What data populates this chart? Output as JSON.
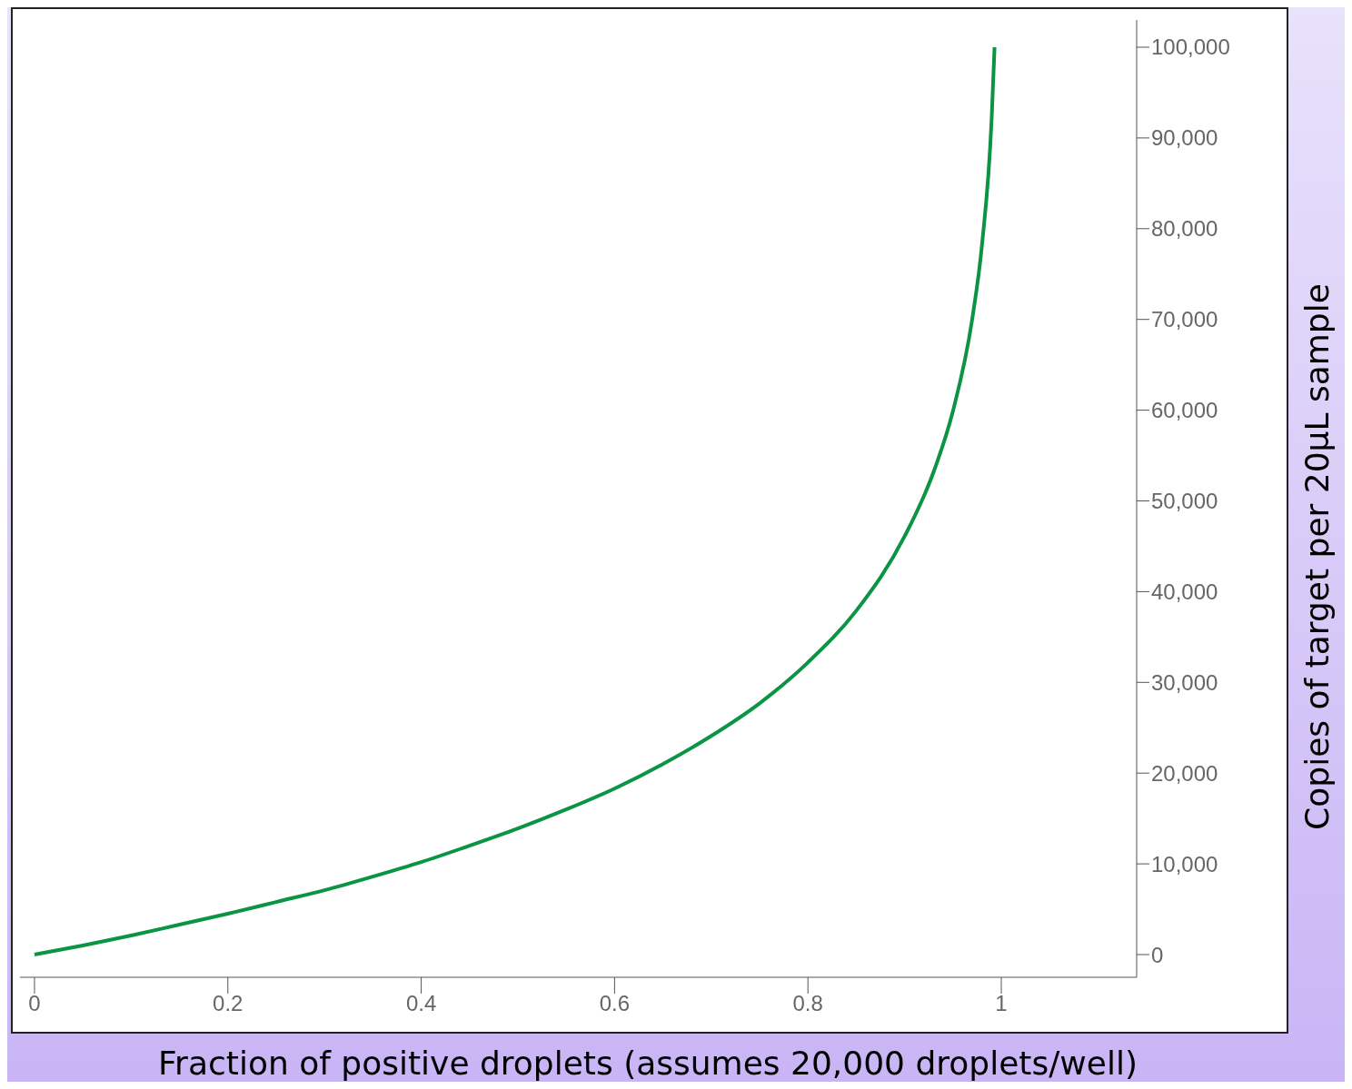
{
  "chart_data": {
    "type": "line",
    "xlabel": "Fraction of positive droplets (assumes 20,000 droplets/well)",
    "ylabel": "Copies of target per 20μL sample",
    "x": [
      0,
      0.05,
      0.1,
      0.15,
      0.2,
      0.25,
      0.3,
      0.35,
      0.4,
      0.45,
      0.5,
      0.55,
      0.6,
      0.65,
      0.7,
      0.75,
      0.8,
      0.85,
      0.9,
      0.93,
      0.95,
      0.97,
      0.98,
      0.99,
      0.993
    ],
    "series": [
      {
        "color": "#0a9444",
        "values": [
          0,
          1000,
          2100,
          3300,
          4500,
          5800,
          7100,
          8600,
          10200,
          12000,
          13900,
          16000,
          18300,
          21000,
          24100,
          27700,
          32200,
          37900,
          46100,
          53200,
          59900,
          70100,
          78200,
          92100,
          100000
        ]
      }
    ],
    "xlim": [
      -0.015,
      1.14
    ],
    "xticks": [
      0,
      0.2,
      0.4,
      0.6,
      0.8,
      1
    ],
    "ylim": [
      -2500,
      103000
    ],
    "yticks": [
      {
        "value": 0,
        "label": "0"
      },
      {
        "value": 10000,
        "label": "10,000"
      },
      {
        "value": 20000,
        "label": "20,000"
      },
      {
        "value": 30000,
        "label": "30,000"
      },
      {
        "value": 40000,
        "label": "40,000"
      },
      {
        "value": 50000,
        "label": "50,000"
      },
      {
        "value": 60000,
        "label": "60,000"
      },
      {
        "value": 70000,
        "label": "70,000"
      },
      {
        "value": 80000,
        "label": "80,000"
      },
      {
        "value": 90000,
        "label": "90,000"
      },
      {
        "value": 100000,
        "label": "100,000"
      }
    ],
    "grid": false,
    "legend": false,
    "marker": "none",
    "line_style": "solid"
  }
}
